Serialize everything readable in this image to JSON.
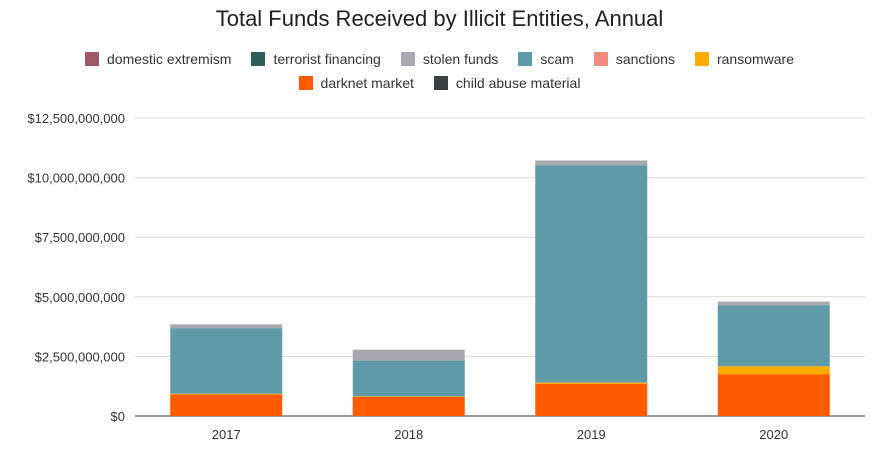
{
  "chart_data": {
    "type": "bar",
    "stacked": true,
    "title": "Total Funds Received by Illicit Entities, Annual",
    "xlabel": "",
    "ylabel": "",
    "categories": [
      "2017",
      "2018",
      "2019",
      "2020"
    ],
    "ylim": [
      0,
      12500000000
    ],
    "yticks": [
      "$0",
      "$2,500,000,000",
      "$5,000,000,000",
      "$7,500,000,000",
      "$10,000,000,000",
      "$12,500,000,000"
    ],
    "grid": true,
    "legend_position": "top",
    "legend_rows": [
      [
        "domestic extremism",
        "terrorist financing",
        "stolen funds",
        "scam",
        "sanctions",
        "ransomware"
      ],
      [
        "darknet market",
        "child abuse material"
      ]
    ],
    "series": [
      {
        "name": "darknet market",
        "color": "#ff5a00",
        "values": [
          900000000,
          800000000,
          1350000000,
          1750000000
        ]
      },
      {
        "name": "ransomware",
        "color": "#ffab00",
        "values": [
          30000000,
          20000000,
          50000000,
          330000000
        ]
      },
      {
        "name": "sanctions",
        "color": "#f28b82",
        "values": [
          5000000,
          5000000,
          5000000,
          5000000
        ]
      },
      {
        "name": "scam",
        "color": "#5e9aa8",
        "values": [
          2750000000,
          1500000000,
          9100000000,
          2550000000
        ]
      },
      {
        "name": "stolen funds",
        "color": "#a6aab0",
        "values": [
          150000000,
          450000000,
          200000000,
          150000000
        ]
      },
      {
        "name": "terrorist financing",
        "color": "#2e5f5f",
        "values": [
          2000000,
          2000000,
          2000000,
          2000000
        ]
      },
      {
        "name": "domestic extremism",
        "color": "#9c5a6a",
        "values": [
          1000000,
          1000000,
          1000000,
          1000000
        ]
      },
      {
        "name": "child abuse material",
        "color": "#3a4046",
        "values": [
          3000000,
          3000000,
          5000000,
          5000000
        ]
      }
    ]
  }
}
